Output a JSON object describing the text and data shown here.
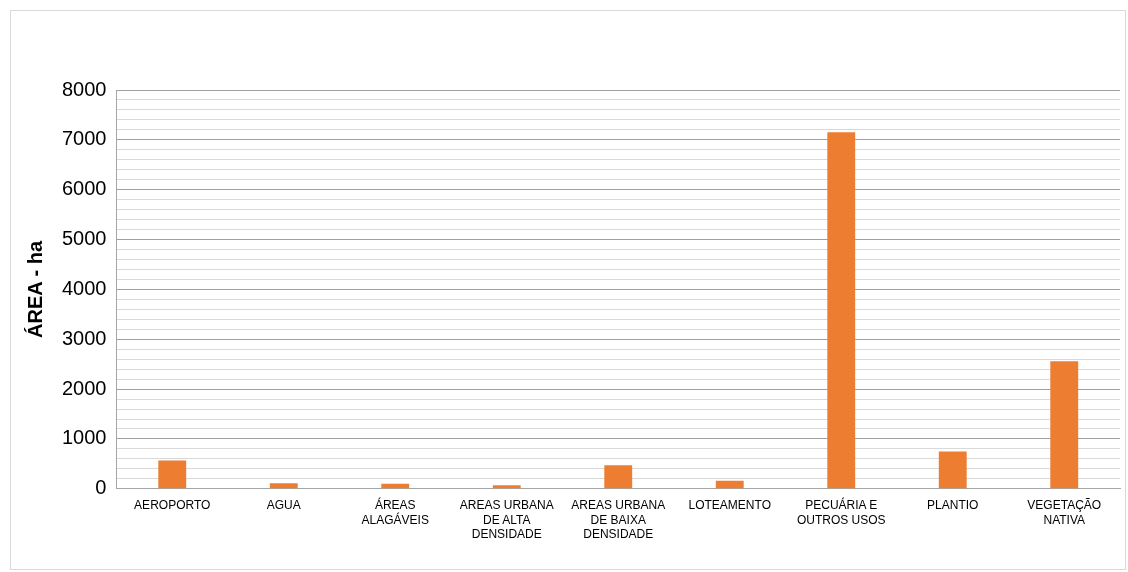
{
  "chart_data": {
    "type": "bar",
    "ylabel": "ÁREA - ha",
    "categories": [
      "AEROPORTO",
      "AGUA",
      "ÁREAS ALAGÁVEIS",
      "AREAS URBANA DE ALTA DENSIDADE",
      "AREAS URBANA DE BAIXA DENSIDADE",
      "LOTEAMENTO",
      "PECUÁRIA E OUTROS USOS",
      "PLANTIO",
      "VEGETAÇÃO NATIVA"
    ],
    "values": [
      570,
      110,
      100,
      70,
      470,
      160,
      7150,
      750,
      2560
    ],
    "color": "#ed7d31",
    "ylim": [
      0,
      8000
    ],
    "yticks": [
      0,
      {
        "value": 200,
        "label": null
      },
      {
        "value": 400,
        "label": null
      },
      {
        "value": 600,
        "label": null
      },
      {
        "value": 800,
        "label": null
      },
      1000,
      {
        "value": 1200,
        "label": null
      },
      {
        "value": 1400,
        "label": null
      },
      {
        "value": 1600,
        "label": null
      },
      {
        "value": 1800,
        "label": null
      },
      2000,
      {
        "value": 2200,
        "label": null
      },
      {
        "value": 2400,
        "label": null
      },
      {
        "value": 2600,
        "label": null
      },
      {
        "value": 2800,
        "label": null
      },
      3000,
      {
        "value": 3200,
        "label": null
      },
      {
        "value": 3400,
        "label": null
      },
      {
        "value": 3600,
        "label": null
      },
      {
        "value": 3800,
        "label": null
      },
      4000,
      {
        "value": 4200,
        "label": null
      },
      {
        "value": 4400,
        "label": null
      },
      {
        "value": 4600,
        "label": null
      },
      {
        "value": 4800,
        "label": null
      },
      5000,
      {
        "value": 5200,
        "label": null
      },
      {
        "value": 5400,
        "label": null
      },
      {
        "value": 5600,
        "label": null
      },
      {
        "value": 5800,
        "label": null
      },
      6000,
      {
        "value": 6200,
        "label": null
      },
      {
        "value": 6400,
        "label": null
      },
      {
        "value": 6600,
        "label": null
      },
      {
        "value": 6800,
        "label": null
      },
      7000,
      {
        "value": 7200,
        "label": null
      },
      {
        "value": 7400,
        "label": null
      },
      {
        "value": 7600,
        "label": null
      },
      {
        "value": 7800,
        "label": null
      },
      8000
    ],
    "grid": "y",
    "legend": false
  }
}
